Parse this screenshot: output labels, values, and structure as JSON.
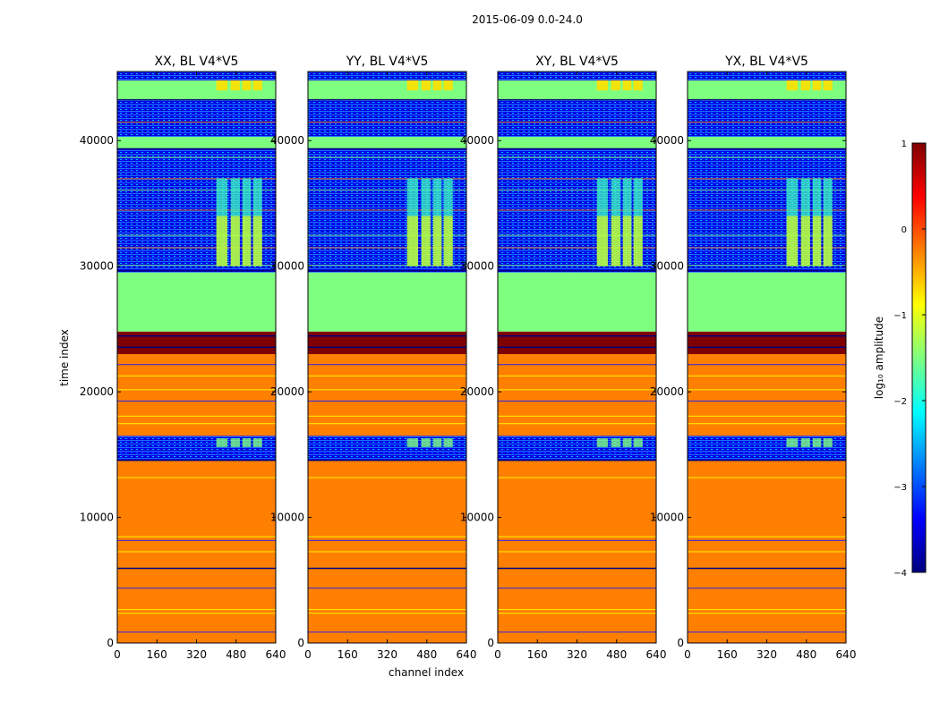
{
  "figure_title": "2015-06-09 0.0-24.0",
  "xlabel": "channel index",
  "ylabel": "time index",
  "colorbar": {
    "label": "log₁₀ amplitude",
    "ticks": [
      "1",
      "0",
      "−1",
      "−2",
      "−3",
      "−4"
    ],
    "range": [
      -4,
      1
    ],
    "colors": [
      "#00007f",
      "#0000ff",
      "#007fff",
      "#00ffff",
      "#7fff7f",
      "#ffff00",
      "#ff7f00",
      "#ff0000",
      "#7f0000"
    ]
  },
  "chart_data": [
    {
      "type": "heatmap",
      "title": "XX, BL V4*V5",
      "xlabel": "channel index",
      "ylabel": "time index",
      "xlim": [
        0,
        640
      ],
      "ylim": [
        0,
        45500
      ],
      "xticks": [
        "0",
        "160",
        "320",
        "480",
        "640"
      ],
      "yticks": [
        "0",
        "10000",
        "20000",
        "30000",
        "40000"
      ],
      "bands": [
        {
          "from": 0,
          "to": 14500,
          "level": -0.3,
          "label": "orange"
        },
        {
          "from": 14500,
          "to": 16500,
          "level": -3.2,
          "label": "blue-noise"
        },
        {
          "from": 16500,
          "to": 23000,
          "level": -0.3,
          "label": "orange"
        },
        {
          "from": 23000,
          "to": 24800,
          "level": 0.7,
          "label": "dark-red"
        },
        {
          "from": 24800,
          "to": 29500,
          "level": -1.2,
          "label": "green"
        },
        {
          "from": 29500,
          "to": 39300,
          "level": -3.3,
          "label": "blue-noise"
        },
        {
          "from": 39300,
          "to": 40300,
          "level": -1.2,
          "label": "green"
        },
        {
          "from": 40300,
          "to": 43200,
          "level": -3.3,
          "label": "blue-noise"
        },
        {
          "from": 43200,
          "to": 44800,
          "level": -1.2,
          "label": "green"
        },
        {
          "from": 44800,
          "to": 45500,
          "level": -3.3,
          "label": "blue-noise"
        }
      ]
    },
    {
      "type": "heatmap",
      "title": "YY, BL V4*V5",
      "xlabel": "channel index",
      "ylabel": "time index",
      "xlim": [
        0,
        640
      ],
      "ylim": [
        0,
        45500
      ],
      "xticks": [
        "0",
        "160",
        "320",
        "480",
        "640"
      ],
      "yticks": [
        "0",
        "10000",
        "20000",
        "30000",
        "40000"
      ],
      "bands": [
        {
          "from": 0,
          "to": 14500,
          "level": -0.3,
          "label": "orange"
        },
        {
          "from": 14500,
          "to": 16500,
          "level": -3.2,
          "label": "blue-noise"
        },
        {
          "from": 16500,
          "to": 23000,
          "level": -0.3,
          "label": "orange"
        },
        {
          "from": 23000,
          "to": 24800,
          "level": 0.7,
          "label": "dark-red"
        },
        {
          "from": 24800,
          "to": 29500,
          "level": -1.2,
          "label": "green"
        },
        {
          "from": 29500,
          "to": 39300,
          "level": -3.3,
          "label": "blue-noise"
        },
        {
          "from": 39300,
          "to": 40300,
          "level": -1.2,
          "label": "green"
        },
        {
          "from": 40300,
          "to": 43200,
          "level": -3.3,
          "label": "blue-noise"
        },
        {
          "from": 43200,
          "to": 44800,
          "level": -1.2,
          "label": "green"
        },
        {
          "from": 44800,
          "to": 45500,
          "level": -3.3,
          "label": "blue-noise"
        }
      ]
    },
    {
      "type": "heatmap",
      "title": "XY, BL V4*V5",
      "xlabel": "channel index",
      "ylabel": "time index",
      "xlim": [
        0,
        640
      ],
      "ylim": [
        0,
        45500
      ],
      "xticks": [
        "0",
        "160",
        "320",
        "480",
        "640"
      ],
      "yticks": [
        "0",
        "10000",
        "20000",
        "30000",
        "40000"
      ],
      "bands": [
        {
          "from": 0,
          "to": 14500,
          "level": -0.3,
          "label": "orange"
        },
        {
          "from": 14500,
          "to": 16500,
          "level": -3.2,
          "label": "blue-noise"
        },
        {
          "from": 16500,
          "to": 23000,
          "level": -0.3,
          "label": "orange"
        },
        {
          "from": 23000,
          "to": 24800,
          "level": 0.7,
          "label": "dark-red"
        },
        {
          "from": 24800,
          "to": 29500,
          "level": -1.2,
          "label": "green"
        },
        {
          "from": 29500,
          "to": 39300,
          "level": -3.3,
          "label": "blue-noise"
        },
        {
          "from": 39300,
          "to": 40300,
          "level": -1.2,
          "label": "green"
        },
        {
          "from": 40300,
          "to": 43200,
          "level": -3.3,
          "label": "blue-noise"
        },
        {
          "from": 43200,
          "to": 44800,
          "level": -1.2,
          "label": "green"
        },
        {
          "from": 44800,
          "to": 45500,
          "level": -3.3,
          "label": "blue-noise"
        }
      ]
    },
    {
      "type": "heatmap",
      "title": "YX, BL V4*V5",
      "xlabel": "channel index",
      "ylabel": "time index",
      "xlim": [
        0,
        640
      ],
      "ylim": [
        0,
        45500
      ],
      "xticks": [
        "0",
        "160",
        "320",
        "480",
        "640"
      ],
      "yticks": [
        "0",
        "10000",
        "20000",
        "30000",
        "40000"
      ],
      "bands": [
        {
          "from": 0,
          "to": 14500,
          "level": -0.3,
          "label": "orange"
        },
        {
          "from": 14500,
          "to": 16500,
          "level": -3.2,
          "label": "blue-noise"
        },
        {
          "from": 16500,
          "to": 23000,
          "level": -0.3,
          "label": "orange"
        },
        {
          "from": 23000,
          "to": 24800,
          "level": 0.7,
          "label": "dark-red"
        },
        {
          "from": 24800,
          "to": 29500,
          "level": -1.2,
          "label": "green"
        },
        {
          "from": 29500,
          "to": 39300,
          "level": -3.3,
          "label": "blue-noise"
        },
        {
          "from": 39300,
          "to": 40300,
          "level": -1.2,
          "label": "green"
        },
        {
          "from": 40300,
          "to": 43200,
          "level": -3.3,
          "label": "blue-noise"
        },
        {
          "from": 43200,
          "to": 44800,
          "level": -1.2,
          "label": "green"
        },
        {
          "from": 44800,
          "to": 45500,
          "level": -3.3,
          "label": "blue-noise"
        }
      ]
    }
  ]
}
